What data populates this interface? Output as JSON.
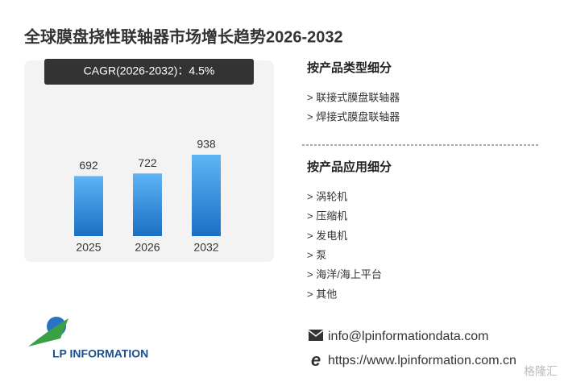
{
  "chart_data": {
    "type": "bar",
    "title": "全球膜盘挠性联轴器市场增长趋势2026-2032",
    "subtitle": "CAGR(2026-2032)：4.5%",
    "categories": [
      "2025",
      "2026",
      "2032"
    ],
    "values": [
      692,
      722,
      938
    ],
    "color": "#2f8ee0"
  },
  "segments": [
    {
      "heading": "按产品类型细分",
      "items": [
        "> 联接式膜盘联轴器",
        "> 焊接式膜盘联轴器"
      ]
    },
    {
      "heading": "按产品应用细分",
      "items": [
        "> 涡轮机",
        "> 压缩机",
        "> 发电机",
        "> 泵",
        "> 海洋/海上平台",
        "> 其他"
      ]
    }
  ],
  "contact": {
    "email": "info@lpinformationdata.com",
    "website": "https://www.lpinformation.com.cn"
  },
  "logo": "LP INFORMATION",
  "watermark": "格隆汇"
}
